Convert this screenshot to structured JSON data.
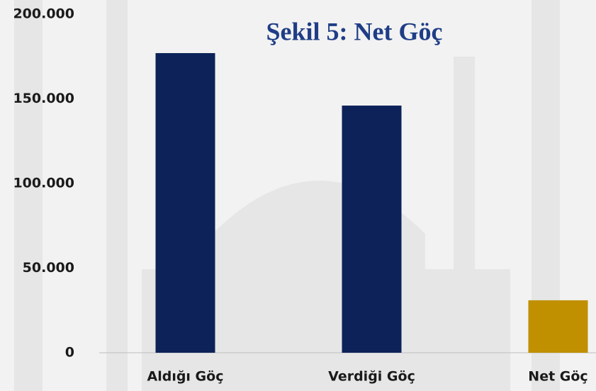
{
  "chart_data": {
    "type": "bar",
    "title": "Şekil 5: Net Göç",
    "categories": [
      "Aldığı Göç",
      "Verdiği Göç",
      "Net Göç"
    ],
    "values": [
      177000,
      146000,
      31000
    ],
    "colors": [
      "#0c2259",
      "#0c2259",
      "#c09000"
    ],
    "ylim": [
      0,
      200000
    ],
    "yticks": [
      0,
      {
        "value": 50000,
        "label": "50.000"
      },
      {
        "value": 100000,
        "label": "100.000"
      },
      {
        "value": 150000,
        "label": "150.000"
      },
      {
        "value": 200000,
        "label": "200.000"
      }
    ],
    "grid": false
  }
}
